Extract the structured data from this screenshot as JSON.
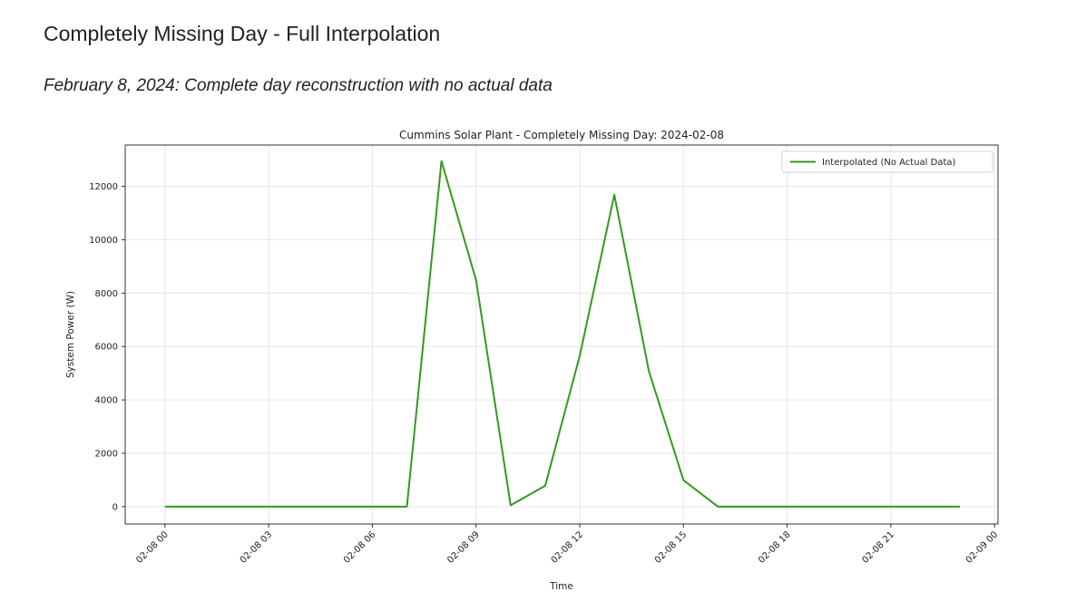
{
  "page": {
    "title": "Completely Missing Day - Full Interpolation",
    "subtitle": "February 8, 2024: Complete day reconstruction with no actual data"
  },
  "colors": {
    "line": "#339a1f",
    "grid": "#e6e6e6",
    "axis": "#333333"
  },
  "chart_data": {
    "type": "line",
    "title": "Cummins Solar Plant - Completely Missing Day: 2024-02-08",
    "xlabel": "Time",
    "ylabel": "System Power (W)",
    "x": [
      "02-08 00",
      "02-08 01",
      "02-08 02",
      "02-08 03",
      "02-08 04",
      "02-08 05",
      "02-08 06",
      "02-08 07",
      "02-08 08",
      "02-08 09",
      "02-08 10",
      "02-08 11",
      "02-08 12",
      "02-08 13",
      "02-08 14",
      "02-08 15",
      "02-08 16",
      "02-08 17",
      "02-08 18",
      "02-08 19",
      "02-08 20",
      "02-08 21",
      "02-08 22",
      "02-08 23"
    ],
    "x_hours": [
      0,
      1,
      2,
      3,
      4,
      5,
      6,
      7,
      8,
      9,
      10,
      11,
      12,
      13,
      14,
      15,
      16,
      17,
      18,
      19,
      20,
      21,
      22,
      23
    ],
    "series": [
      {
        "name": "Interpolated (No Actual Data)",
        "values": [
          0,
          0,
          0,
          0,
          0,
          0,
          0,
          0,
          12950,
          8490,
          50,
          780,
          5650,
          11690,
          5080,
          990,
          0,
          0,
          0,
          0,
          0,
          0,
          0,
          0
        ]
      }
    ],
    "xticks": [
      "02-08 00",
      "02-08 03",
      "02-08 06",
      "02-08 09",
      "02-08 12",
      "02-08 15",
      "02-08 18",
      "02-08 21",
      "02-09 00"
    ],
    "yticks": [
      0,
      2000,
      4000,
      6000,
      8000,
      10000,
      12000
    ],
    "ylim": [
      -650,
      13550
    ],
    "xlim_hours": [
      -1.15,
      24.1
    ],
    "grid": true,
    "legend_position": "upper right"
  }
}
